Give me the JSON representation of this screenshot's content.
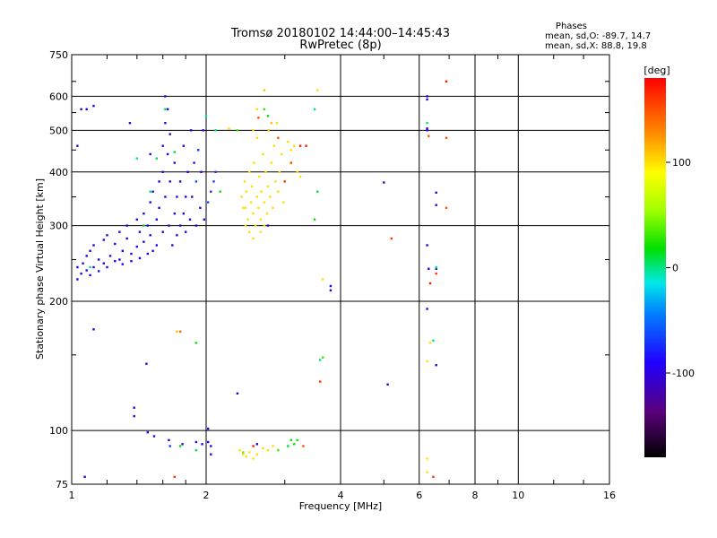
{
  "chart_data": {
    "type": "scatter",
    "title": "Tromsø 20180102 14:44:00–14:45:43",
    "subtitle": "RwPretec (8p)",
    "info_title": "Phases",
    "info_lines": [
      "mean, sd,O: -89.7, 14.7",
      "mean, sd,X:  88.8, 19.8"
    ],
    "xlabel": "Frequency [MHz]",
    "ylabel": "Stationary phase Virtual Height [km]",
    "x_scale": "log",
    "y_scale": "log",
    "xlim": [
      1,
      16
    ],
    "ylim": [
      75,
      750
    ],
    "xticks": [
      1,
      2,
      4,
      6,
      8,
      10,
      16
    ],
    "xtick_labels": [
      "1",
      "2",
      "4",
      "6",
      "8",
      "10",
      "16"
    ],
    "yticks": [
      75,
      100,
      200,
      300,
      400,
      500,
      600,
      750
    ],
    "ytick_labels": [
      "75",
      "100",
      "200",
      "300",
      "400",
      "500",
      "600",
      "750"
    ],
    "grid": true,
    "colorbar": {
      "label": "[deg]",
      "range": [
        -180,
        180
      ],
      "ticks": [
        100,
        0,
        -100
      ],
      "tick_labels": [
        "100",
        "0",
        "-100"
      ]
    },
    "series": [
      {
        "points": [
          [
            1.03,
            240,
            -100
          ],
          [
            1.03,
            225,
            -90
          ],
          [
            1.05,
            232,
            -100
          ],
          [
            1.06,
            245,
            -95
          ],
          [
            1.08,
            255,
            -100
          ],
          [
            1.08,
            236,
            -88
          ],
          [
            1.1,
            262,
            -100
          ],
          [
            1.1,
            230,
            -92
          ],
          [
            1.12,
            270,
            -100
          ],
          [
            1.12,
            240,
            -95
          ],
          [
            1.15,
            235,
            -85
          ],
          [
            1.15,
            250,
            -100
          ],
          [
            1.18,
            278,
            -100
          ],
          [
            1.18,
            245,
            -95
          ],
          [
            1.2,
            240,
            -90
          ],
          [
            1.2,
            285,
            -105
          ],
          [
            1.22,
            255,
            -100
          ],
          [
            1.25,
            248,
            -92
          ],
          [
            1.25,
            272,
            -100
          ],
          [
            1.28,
            290,
            -100
          ],
          [
            1.28,
            250,
            -95
          ],
          [
            1.3,
            262,
            -100
          ],
          [
            1.3,
            244,
            -88
          ],
          [
            1.33,
            280,
            -100
          ],
          [
            1.33,
            300,
            -105
          ],
          [
            1.36,
            258,
            -95
          ],
          [
            1.36,
            248,
            -90
          ],
          [
            1.4,
            268,
            -100
          ],
          [
            1.4,
            310,
            -100
          ],
          [
            1.42,
            290,
            -100
          ],
          [
            1.42,
            252,
            -92
          ],
          [
            1.45,
            275,
            -100
          ],
          [
            1.45,
            320,
            -105
          ],
          [
            1.48,
            258,
            -95
          ],
          [
            1.48,
            300,
            -100
          ],
          [
            1.5,
            340,
            -100
          ],
          [
            1.5,
            285,
            -100
          ],
          [
            1.52,
            262,
            -92
          ],
          [
            1.52,
            360,
            -100
          ],
          [
            1.55,
            310,
            -100
          ],
          [
            1.55,
            270,
            -95
          ],
          [
            1.57,
            380,
            -100
          ],
          [
            1.57,
            330,
            -100
          ],
          [
            1.6,
            290,
            -100
          ],
          [
            1.6,
            400,
            -100
          ],
          [
            1.6,
            460,
            -100
          ],
          [
            1.62,
            350,
            -100
          ],
          [
            1.62,
            520,
            -100
          ],
          [
            1.62,
            600,
            -100
          ],
          [
            1.64,
            560,
            -100
          ],
          [
            1.64,
            440,
            -105
          ],
          [
            1.65,
            300,
            -100
          ],
          [
            1.66,
            380,
            -100
          ],
          [
            1.66,
            490,
            -100
          ],
          [
            1.68,
            270,
            -92
          ],
          [
            1.7,
            320,
            -100
          ],
          [
            1.7,
            420,
            -100
          ],
          [
            1.72,
            350,
            -100
          ],
          [
            1.72,
            285,
            -95
          ],
          [
            1.75,
            300,
            -100
          ],
          [
            1.75,
            380,
            -100
          ],
          [
            1.78,
            320,
            -100
          ],
          [
            1.78,
            460,
            -100
          ],
          [
            1.8,
            290,
            -95
          ],
          [
            1.8,
            350,
            -100
          ],
          [
            1.82,
            400,
            -100
          ],
          [
            1.84,
            310,
            -100
          ],
          [
            1.85,
            500,
            -100
          ],
          [
            1.86,
            350,
            -100
          ],
          [
            1.88,
            420,
            -80
          ],
          [
            1.9,
            300,
            -100
          ],
          [
            1.9,
            380,
            -60
          ],
          [
            1.92,
            450,
            -70
          ],
          [
            1.94,
            330,
            -100
          ],
          [
            1.95,
            400,
            -100
          ],
          [
            1.97,
            500,
            -100
          ],
          [
            1.98,
            310,
            -100
          ],
          [
            2.02,
            340,
            -60
          ],
          [
            2.05,
            360,
            -70
          ],
          [
            2.08,
            380,
            -65
          ],
          [
            2.1,
            400,
            -70
          ],
          [
            1.05,
            560,
            -100
          ],
          [
            1.08,
            560,
            -100
          ],
          [
            1.12,
            570,
            -100
          ],
          [
            1.35,
            520,
            -100
          ],
          [
            1.5,
            440,
            -100
          ],
          [
            1.03,
            460,
            -100
          ],
          [
            1.07,
            78,
            -100
          ],
          [
            1.12,
            172,
            -100
          ],
          [
            1.38,
            113,
            -100
          ],
          [
            1.38,
            108,
            -100
          ],
          [
            1.47,
            143,
            -100
          ],
          [
            1.48,
            99,
            -100
          ],
          [
            1.53,
            97,
            -100
          ],
          [
            1.65,
            95,
            -100
          ],
          [
            1.66,
            92,
            -70
          ],
          [
            1.77,
            93,
            -100
          ],
          [
            1.9,
            94,
            -100
          ],
          [
            1.96,
            93,
            -100
          ],
          [
            2.02,
            101,
            -100
          ],
          [
            2.02,
            94,
            -100
          ],
          [
            2.05,
            92,
            -100
          ],
          [
            2.05,
            88,
            -100
          ],
          [
            2.35,
            122,
            -100
          ],
          [
            2.6,
            93,
            -100
          ],
          [
            2.75,
            300,
            -100
          ],
          [
            3.8,
            212,
            -100
          ],
          [
            3.8,
            217,
            -100
          ],
          [
            5.0,
            378,
            -100
          ],
          [
            5.1,
            128,
            -100
          ],
          [
            6.25,
            600,
            -100
          ],
          [
            6.25,
            590,
            -100
          ],
          [
            6.25,
            505,
            -100
          ],
          [
            6.25,
            270,
            -100
          ],
          [
            6.3,
            238,
            -100
          ],
          [
            6.25,
            192,
            -100
          ],
          [
            6.55,
            358,
            -100
          ],
          [
            6.55,
            335,
            -100
          ],
          [
            6.55,
            238,
            -100
          ],
          [
            6.55,
            142,
            -100
          ],
          [
            6.25,
            500,
            -90
          ]
        ]
      },
      {
        "points": [
          [
            2.4,
            350,
            100
          ],
          [
            2.42,
            330,
            100
          ],
          [
            2.44,
            380,
            100
          ],
          [
            2.45,
            300,
            100
          ],
          [
            2.46,
            360,
            100
          ],
          [
            2.48,
            310,
            100
          ],
          [
            2.5,
            400,
            100
          ],
          [
            2.5,
            290,
            100
          ],
          [
            2.52,
            340,
            100
          ],
          [
            2.53,
            370,
            100
          ],
          [
            2.55,
            320,
            100
          ],
          [
            2.56,
            420,
            100
          ],
          [
            2.58,
            300,
            100
          ],
          [
            2.6,
            350,
            100
          ],
          [
            2.6,
            480,
            100
          ],
          [
            2.62,
            330,
            100
          ],
          [
            2.63,
            390,
            100
          ],
          [
            2.65,
            310,
            100
          ],
          [
            2.66,
            360,
            100
          ],
          [
            2.68,
            440,
            100
          ],
          [
            2.7,
            340,
            100
          ],
          [
            2.7,
            300,
            100
          ],
          [
            2.72,
            400,
            100
          ],
          [
            2.74,
            320,
            100
          ],
          [
            2.75,
            370,
            100
          ],
          [
            2.76,
            500,
            110
          ],
          [
            2.78,
            350,
            100
          ],
          [
            2.8,
            420,
            100
          ],
          [
            2.82,
            330,
            100
          ],
          [
            2.84,
            460,
            100
          ],
          [
            2.86,
            380,
            100
          ],
          [
            2.88,
            520,
            100
          ],
          [
            2.9,
            360,
            100
          ],
          [
            2.92,
            400,
            100
          ],
          [
            2.95,
            440,
            100
          ],
          [
            2.98,
            340,
            100
          ],
          [
            3.0,
            380,
            100
          ],
          [
            3.05,
            470,
            100
          ],
          [
            3.1,
            420,
            100
          ],
          [
            3.15,
            460,
            100
          ],
          [
            3.2,
            400,
            100
          ],
          [
            3.25,
            390,
            100
          ],
          [
            2.45,
            330,
            100
          ],
          [
            2.55,
            280,
            100
          ],
          [
            2.65,
            290,
            100
          ],
          [
            2.8,
            520,
            110
          ],
          [
            2.7,
            620,
            110
          ],
          [
            2.6,
            560,
            100
          ],
          [
            2.55,
            500,
            100
          ],
          [
            3.1,
            450,
            100
          ],
          [
            2.38,
            90,
            100
          ],
          [
            2.42,
            88,
            100
          ],
          [
            2.46,
            87,
            100
          ],
          [
            2.5,
            89,
            100
          ],
          [
            2.55,
            86,
            100
          ],
          [
            2.6,
            88,
            100
          ],
          [
            2.68,
            91,
            100
          ],
          [
            2.75,
            90,
            100
          ],
          [
            2.82,
            92,
            100
          ],
          [
            3.55,
            620,
            100
          ],
          [
            3.65,
            225,
            100
          ],
          [
            6.25,
            86,
            100
          ],
          [
            6.25,
            80,
            100
          ],
          [
            6.25,
            145,
            100
          ],
          [
            6.35,
            160,
            100
          ],
          [
            1.72,
            170,
            110
          ],
          [
            2.25,
            505,
            100
          ]
        ]
      },
      {
        "points": [
          [
            1.1,
            240,
            0
          ],
          [
            1.4,
            430,
            0
          ],
          [
            1.45,
            300,
            10
          ],
          [
            1.5,
            360,
            0
          ],
          [
            1.55,
            430,
            10
          ],
          [
            1.62,
            560,
            5
          ],
          [
            1.7,
            445,
            10
          ],
          [
            1.9,
            160,
            20
          ],
          [
            1.9,
            90,
            10
          ],
          [
            2.0,
            540,
            0
          ],
          [
            2.1,
            500,
            0
          ],
          [
            2.15,
            360,
            20
          ],
          [
            2.35,
            500,
            30
          ],
          [
            3.05,
            92,
            10
          ],
          [
            3.1,
            95,
            20
          ],
          [
            3.15,
            93,
            20
          ],
          [
            3.2,
            95,
            10
          ],
          [
            3.5,
            560,
            0
          ],
          [
            3.5,
            310,
            20
          ],
          [
            3.55,
            360,
            10
          ],
          [
            3.6,
            146,
            0
          ],
          [
            3.65,
            148,
            30
          ],
          [
            2.7,
            560,
            30
          ],
          [
            2.75,
            540,
            20
          ],
          [
            6.25,
            520,
            0
          ],
          [
            6.45,
            162,
            0
          ],
          [
            2.42,
            89,
            40
          ],
          [
            2.9,
            90,
            30
          ],
          [
            1.75,
            92,
            20
          ],
          [
            6.55,
            240,
            0
          ]
        ]
      },
      {
        "points": [
          [
            1.7,
            78,
            160
          ],
          [
            1.75,
            170,
            140
          ],
          [
            2.55,
            92,
            170
          ],
          [
            2.9,
            480,
            150
          ],
          [
            3.0,
            380,
            160
          ],
          [
            3.1,
            420,
            150
          ],
          [
            3.25,
            460,
            170
          ],
          [
            3.3,
            92,
            150
          ],
          [
            3.6,
            130,
            160
          ],
          [
            5.2,
            280,
            160
          ],
          [
            6.3,
            485,
            150
          ],
          [
            6.35,
            220,
            170
          ],
          [
            6.55,
            232,
            160
          ],
          [
            6.9,
            650,
            170
          ],
          [
            6.9,
            480,
            150
          ],
          [
            6.9,
            330,
            150
          ],
          [
            6.45,
            78,
            160
          ],
          [
            3.35,
            460,
            170
          ],
          [
            2.62,
            535,
            150
          ]
        ]
      }
    ]
  }
}
